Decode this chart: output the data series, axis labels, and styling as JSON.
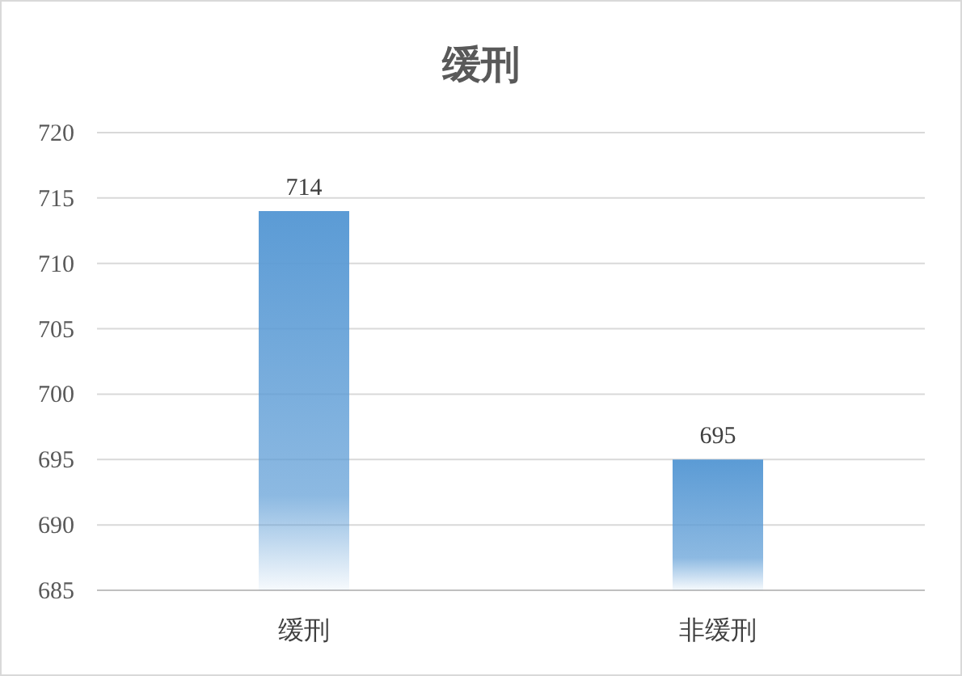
{
  "chart_data": {
    "type": "bar",
    "title": "缓刑",
    "categories": [
      "缓刑",
      "非缓刑"
    ],
    "values": [
      714,
      695
    ],
    "color": "#5b9bd5",
    "ylim": [
      685,
      720
    ],
    "yticks": [
      685,
      690,
      695,
      700,
      705,
      710,
      715,
      720
    ],
    "grid": "y",
    "data_labels": true
  }
}
